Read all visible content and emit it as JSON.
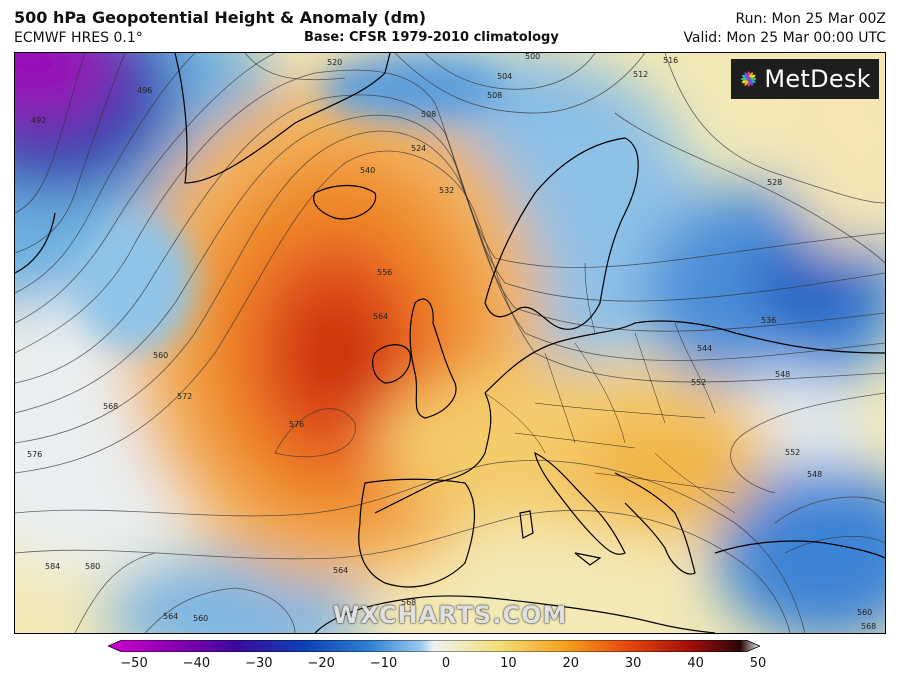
{
  "header": {
    "title": "500 hPa Geopotential Height & Anomaly (dm)",
    "subtitle": "ECMWF HRES 0.1°",
    "base": "Base: CFSR 1979-2010 climatology",
    "run": "Run: Mon 25 Mar 00Z",
    "valid": "Valid: Mon 25 Mar 00:00 UTC"
  },
  "logo": {
    "text": "MetDesk"
  },
  "watermark": "WXCHARTS.COM",
  "contour_labels": [
    "520",
    "504",
    "508",
    "500",
    "512",
    "516",
    "496",
    "492",
    "508",
    "524",
    "532",
    "540",
    "556",
    "564",
    "560",
    "568",
    "572",
    "576",
    "576",
    "528",
    "536",
    "544",
    "552",
    "548",
    "552",
    "548",
    "584",
    "580",
    "564",
    "568",
    "560",
    "564",
    "560",
    "568"
  ],
  "colorbar": {
    "ticks": [
      "−50",
      "−40",
      "−30",
      "−20",
      "−10",
      "0",
      "10",
      "20",
      "30",
      "40",
      "50"
    ],
    "colors": [
      "#d100d1",
      "#8a00b0",
      "#3a0aa0",
      "#0f3fb8",
      "#2f7fd0",
      "#9cc9ec",
      "#eef3f2",
      "#f2dd7a",
      "#f4a11e",
      "#e6460e",
      "#9a0c0c",
      "#2a0808",
      "#e8e8e8"
    ]
  }
}
